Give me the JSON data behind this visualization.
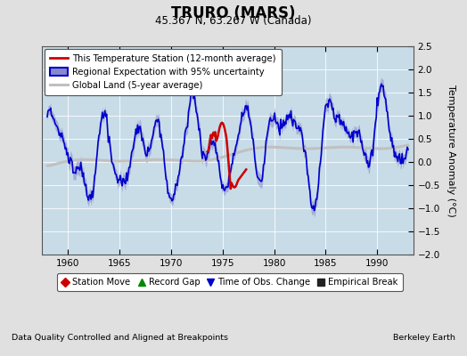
{
  "title": "TRURO (MARS)",
  "subtitle": "45.367 N, 63.267 W (Canada)",
  "ylabel": "Temperature Anomaly (°C)",
  "xlabel_bottom_left": "Data Quality Controlled and Aligned at Breakpoints",
  "xlabel_bottom_right": "Berkeley Earth",
  "ylim": [
    -2.0,
    2.5
  ],
  "xlim": [
    1957.5,
    1993.5
  ],
  "xticks": [
    1960,
    1965,
    1970,
    1975,
    1980,
    1985,
    1990
  ],
  "yticks": [
    -2.0,
    -1.5,
    -1.0,
    -0.5,
    0.0,
    0.5,
    1.0,
    1.5,
    2.0,
    2.5
  ],
  "bg_color": "#e0e0e0",
  "plot_bg_color": "#c8dce8",
  "regional_color": "#0000cc",
  "regional_fill_color": "#8888cc",
  "station_color": "#cc0000",
  "global_color": "#c0c0c0",
  "legend1_entries": [
    {
      "label": "This Temperature Station (12-month average)",
      "color": "#cc0000",
      "lw": 1.8
    },
    {
      "label": "Regional Expectation with 95% uncertainty",
      "color": "#0000cc",
      "lw": 1.5
    },
    {
      "label": "Global Land (5-year average)",
      "color": "#c0c0c0",
      "lw": 2.0
    }
  ],
  "legend2_entries": [
    {
      "label": "Station Move",
      "color": "#cc0000",
      "marker": "D"
    },
    {
      "label": "Record Gap",
      "color": "#008800",
      "marker": "^"
    },
    {
      "label": "Time of Obs. Change",
      "color": "#0000cc",
      "marker": "v"
    },
    {
      "label": "Empirical Break",
      "color": "#222222",
      "marker": "s"
    }
  ],
  "figsize": [
    5.24,
    4.0
  ],
  "dpi": 100
}
